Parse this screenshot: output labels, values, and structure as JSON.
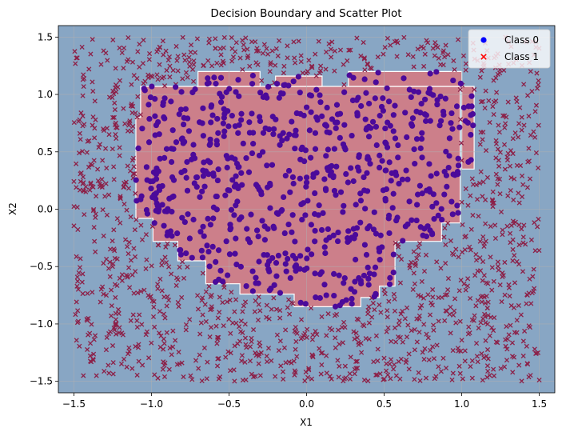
{
  "chart_data": {
    "type": "scatter",
    "title": "Decision Boundary and Scatter Plot",
    "xlabel": "X1",
    "ylabel": "X2",
    "xlim": [
      -1.6,
      1.6
    ],
    "ylim": [
      -1.6,
      1.6
    ],
    "xticks": [
      -1.5,
      -1.0,
      -0.5,
      0.0,
      0.5,
      1.0,
      1.5
    ],
    "yticks": [
      -1.5,
      -1.0,
      -0.5,
      0.0,
      0.5,
      1.0,
      1.5
    ],
    "xtick_labels": [
      "−1.5",
      "−1.0",
      "−0.5",
      "0.0",
      "0.5",
      "1.0",
      "1.5"
    ],
    "ytick_labels": [
      "−1.5",
      "−1.0",
      "−0.5",
      "0.0",
      "0.5",
      "1.0",
      "1.5"
    ],
    "grid": true,
    "legend_position": "top-right",
    "legend": [
      {
        "label": "Class 0",
        "marker": "circle",
        "color": "#0000ff"
      },
      {
        "label": "Class 1",
        "marker": "x",
        "color": "#ff0000"
      }
    ],
    "background_color": "#88a6c4",
    "region_color": "#cc7f8a",
    "class0_point_color": "#4b0a9a",
    "class1_point_color": "#8c2048",
    "decision_region_class0": [
      [
        -1.07,
        1.07
      ],
      [
        0.99,
        1.07
      ],
      [
        0.99,
        -0.12
      ],
      [
        0.87,
        -0.12
      ],
      [
        0.87,
        -0.28
      ],
      [
        0.57,
        -0.28
      ],
      [
        0.57,
        -0.67
      ],
      [
        0.47,
        -0.67
      ],
      [
        0.47,
        -0.77
      ],
      [
        0.35,
        -0.77
      ],
      [
        0.35,
        -0.85
      ],
      [
        -0.08,
        -0.85
      ],
      [
        -0.08,
        -0.74
      ],
      [
        -0.43,
        -0.74
      ],
      [
        -0.43,
        -0.65
      ],
      [
        -0.65,
        -0.65
      ],
      [
        -0.65,
        -0.45
      ],
      [
        -0.83,
        -0.45
      ],
      [
        -0.83,
        -0.28
      ],
      [
        -0.99,
        -0.28
      ],
      [
        -0.99,
        -0.08
      ],
      [
        -1.1,
        -0.08
      ],
      [
        -1.1,
        0.8
      ],
      [
        -1.07,
        0.8
      ]
    ],
    "decision_region_patches": [
      [
        [
          -0.7,
          1.07
        ],
        [
          -0.7,
          1.2
        ],
        [
          -0.3,
          1.2
        ],
        [
          -0.3,
          1.07
        ]
      ],
      [
        [
          -0.2,
          1.07
        ],
        [
          -0.2,
          1.16
        ],
        [
          0.1,
          1.16
        ],
        [
          0.1,
          1.07
        ]
      ],
      [
        [
          0.27,
          1.07
        ],
        [
          0.27,
          1.2
        ],
        [
          1.0,
          1.2
        ],
        [
          1.0,
          1.07
        ]
      ],
      [
        [
          1.0,
          1.07
        ],
        [
          1.08,
          1.07
        ],
        [
          1.08,
          0.35
        ],
        [
          1.0,
          0.35
        ]
      ]
    ],
    "n_class0_points": 700,
    "n_class1_points": 1300,
    "class0_region": "inside decision region",
    "class1_region": "outside decision region"
  }
}
